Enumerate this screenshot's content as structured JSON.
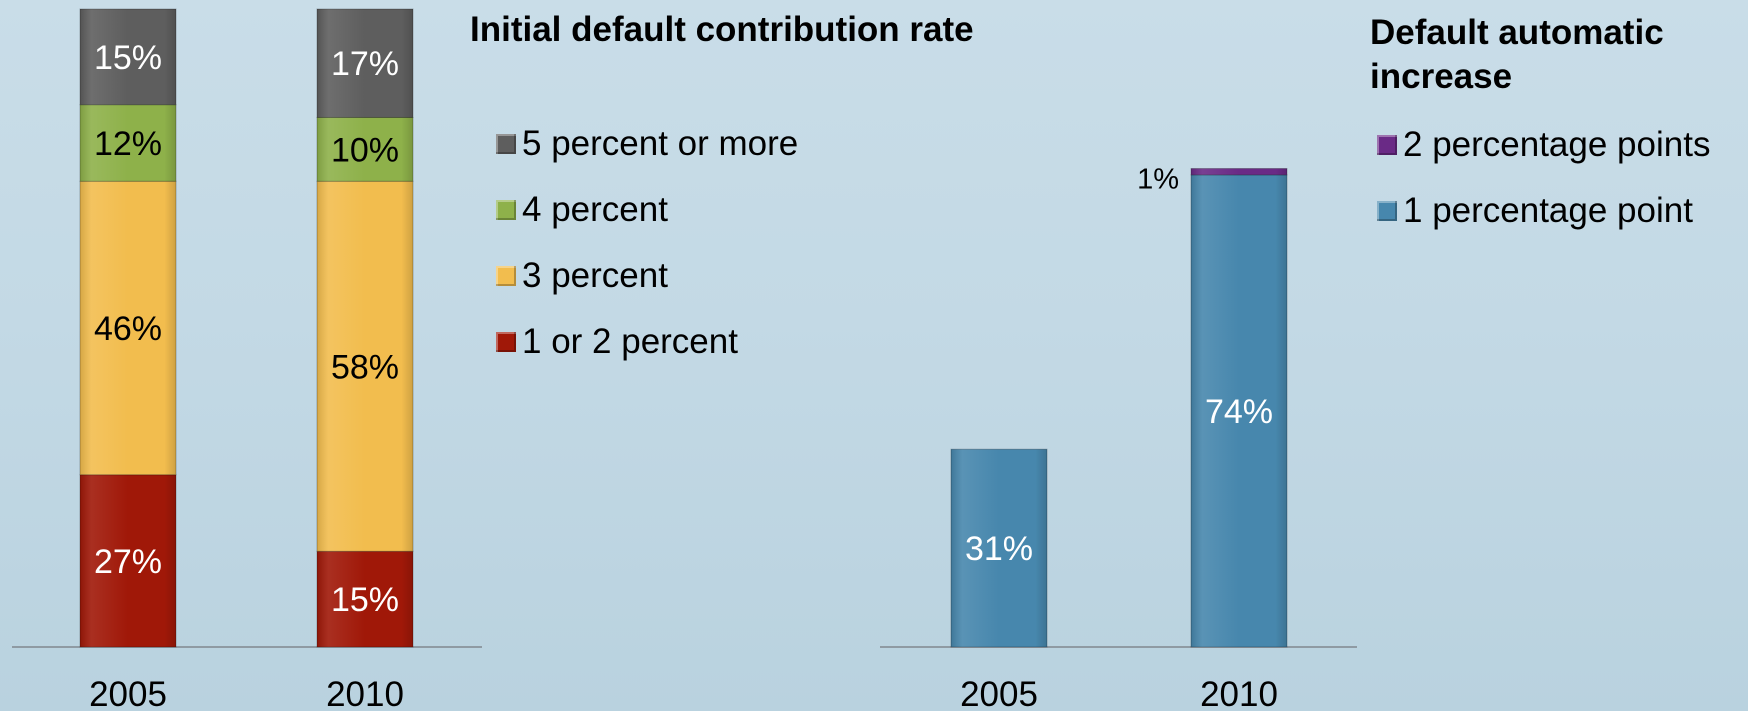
{
  "chart_data": [
    {
      "type": "bar",
      "stacked": true,
      "legend_title": "Initial default contribution rate",
      "categories": [
        "2005",
        "2010"
      ],
      "ylim": [
        0,
        100
      ],
      "series": [
        {
          "name": "1 or 2 percent",
          "color": "#a01808",
          "values": [
            27,
            15
          ],
          "labels": [
            "27%",
            "15%"
          ]
        },
        {
          "name": "3 percent",
          "color": "#f2bd4e",
          "values": [
            46,
            58
          ],
          "labels": [
            "46%",
            "58%"
          ]
        },
        {
          "name": "4 percent",
          "color": "#8eb14a",
          "values": [
            12,
            10
          ],
          "labels": [
            "12%",
            "10%"
          ]
        },
        {
          "name": "5 percent or more",
          "color": "#5e5e5e",
          "values": [
            15,
            17
          ],
          "labels": [
            "15%",
            "17%"
          ]
        }
      ],
      "legend_order": [
        "5 percent or more",
        "4 percent",
        "3 percent",
        "1 or 2 percent"
      ],
      "legend_placement": "right",
      "grid": false
    },
    {
      "type": "bar",
      "stacked": true,
      "legend_title": "Default automatic increase",
      "categories": [
        "2005",
        "2010"
      ],
      "ylim": [
        0,
        100
      ],
      "series": [
        {
          "name": "1 percentage point",
          "color": "#4787ad",
          "values": [
            31,
            74
          ],
          "labels": [
            "31%",
            "74%"
          ]
        },
        {
          "name": "2 percentage points",
          "color": "#6a2a86",
          "values": [
            0,
            1
          ],
          "labels": [
            "",
            "1%"
          ]
        }
      ],
      "legend_order": [
        "2 percentage points",
        "1 percentage point"
      ],
      "legend_placement": "right",
      "grid": false
    }
  ]
}
